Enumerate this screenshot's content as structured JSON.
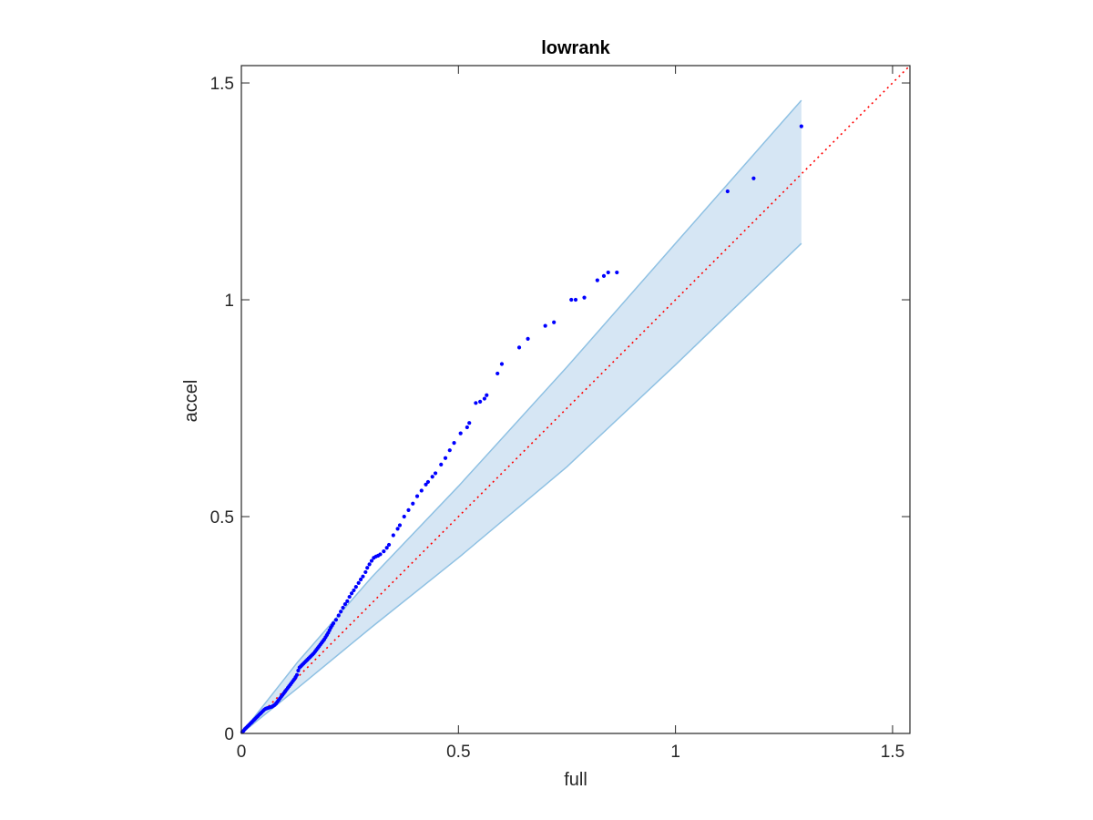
{
  "chart_data": {
    "type": "scatter",
    "title": "lowrank",
    "xlabel": "full",
    "ylabel": "accel",
    "xlim": [
      0,
      1.54
    ],
    "ylim": [
      0,
      1.54
    ],
    "xticks": [
      0,
      0.5,
      1,
      1.5
    ],
    "yticks": [
      0,
      0.5,
      1,
      1.5
    ],
    "xtick_labels": [
      "0",
      "0.5",
      "1",
      "1.5"
    ],
    "ytick_labels": [
      "0",
      "0.5",
      "1",
      "1.5"
    ],
    "grid": false,
    "colors": {
      "points": "#0000ff",
      "reference_line": "#ff0000",
      "band_fill": "#d6e6f4",
      "band_edge": "#8fc1e3",
      "axes": "#262626"
    },
    "reference_line": {
      "style": "dotted",
      "from": [
        0,
        0
      ],
      "to": [
        1.54,
        1.54
      ]
    },
    "confidence_band": {
      "x": [
        0,
        0.13,
        0.3,
        0.5,
        0.75,
        1.0,
        1.29
      ],
      "upper": [
        0,
        0.165,
        0.36,
        0.57,
        0.845,
        1.13,
        1.46
      ],
      "lower": [
        0,
        0.105,
        0.245,
        0.405,
        0.615,
        0.85,
        1.13
      ]
    },
    "series": [
      {
        "points": [
          [
            0.002,
            0.003
          ],
          [
            0.005,
            0.006
          ],
          [
            0.008,
            0.01
          ],
          [
            0.011,
            0.013
          ],
          [
            0.014,
            0.016
          ],
          [
            0.017,
            0.019
          ],
          [
            0.02,
            0.022
          ],
          [
            0.023,
            0.025
          ],
          [
            0.026,
            0.028
          ],
          [
            0.029,
            0.031
          ],
          [
            0.032,
            0.034
          ],
          [
            0.035,
            0.037
          ],
          [
            0.038,
            0.04
          ],
          [
            0.041,
            0.043
          ],
          [
            0.044,
            0.046
          ],
          [
            0.047,
            0.049
          ],
          [
            0.05,
            0.052
          ],
          [
            0.053,
            0.055
          ],
          [
            0.056,
            0.057
          ],
          [
            0.059,
            0.058
          ],
          [
            0.062,
            0.059
          ],
          [
            0.065,
            0.06
          ],
          [
            0.068,
            0.061
          ],
          [
            0.071,
            0.062
          ],
          [
            0.074,
            0.064
          ],
          [
            0.077,
            0.066
          ],
          [
            0.08,
            0.069
          ],
          [
            0.083,
            0.073
          ],
          [
            0.086,
            0.077
          ],
          [
            0.089,
            0.081
          ],
          [
            0.092,
            0.085
          ],
          [
            0.095,
            0.089
          ],
          [
            0.098,
            0.093
          ],
          [
            0.101,
            0.097
          ],
          [
            0.104,
            0.101
          ],
          [
            0.107,
            0.105
          ],
          [
            0.11,
            0.109
          ],
          [
            0.113,
            0.113
          ],
          [
            0.116,
            0.117
          ],
          [
            0.119,
            0.121
          ],
          [
            0.122,
            0.125
          ],
          [
            0.125,
            0.13
          ],
          [
            0.128,
            0.135
          ],
          [
            0.131,
            0.145
          ],
          [
            0.134,
            0.152
          ],
          [
            0.137,
            0.155
          ],
          [
            0.14,
            0.158
          ],
          [
            0.143,
            0.161
          ],
          [
            0.146,
            0.164
          ],
          [
            0.149,
            0.167
          ],
          [
            0.152,
            0.17
          ],
          [
            0.155,
            0.173
          ],
          [
            0.158,
            0.176
          ],
          [
            0.161,
            0.179
          ],
          [
            0.164,
            0.182
          ],
          [
            0.167,
            0.185
          ],
          [
            0.17,
            0.189
          ],
          [
            0.173,
            0.193
          ],
          [
            0.176,
            0.197
          ],
          [
            0.179,
            0.201
          ],
          [
            0.182,
            0.205
          ],
          [
            0.185,
            0.209
          ],
          [
            0.188,
            0.213
          ],
          [
            0.191,
            0.217
          ],
          [
            0.194,
            0.222
          ],
          [
            0.197,
            0.227
          ],
          [
            0.2,
            0.232
          ],
          [
            0.203,
            0.238
          ],
          [
            0.206,
            0.244
          ],
          [
            0.209,
            0.249
          ],
          [
            0.212,
            0.254
          ],
          [
            0.218,
            0.262
          ],
          [
            0.224,
            0.272
          ],
          [
            0.229,
            0.281
          ],
          [
            0.234,
            0.29
          ],
          [
            0.239,
            0.298
          ],
          [
            0.244,
            0.305
          ],
          [
            0.249,
            0.315
          ],
          [
            0.254,
            0.323
          ],
          [
            0.259,
            0.33
          ],
          [
            0.264,
            0.338
          ],
          [
            0.27,
            0.347
          ],
          [
            0.275,
            0.355
          ],
          [
            0.28,
            0.362
          ],
          [
            0.286,
            0.372
          ],
          [
            0.29,
            0.382
          ],
          [
            0.295,
            0.39
          ],
          [
            0.3,
            0.398
          ],
          [
            0.305,
            0.405
          ],
          [
            0.31,
            0.408
          ],
          [
            0.315,
            0.41
          ],
          [
            0.32,
            0.413
          ],
          [
            0.328,
            0.42
          ],
          [
            0.335,
            0.428
          ],
          [
            0.34,
            0.435
          ],
          [
            0.35,
            0.457
          ],
          [
            0.36,
            0.472
          ],
          [
            0.365,
            0.48
          ],
          [
            0.375,
            0.5
          ],
          [
            0.385,
            0.515
          ],
          [
            0.395,
            0.53
          ],
          [
            0.405,
            0.547
          ],
          [
            0.415,
            0.56
          ],
          [
            0.425,
            0.574
          ],
          [
            0.43,
            0.58
          ],
          [
            0.44,
            0.592
          ],
          [
            0.447,
            0.6
          ],
          [
            0.46,
            0.62
          ],
          [
            0.47,
            0.635
          ],
          [
            0.48,
            0.653
          ],
          [
            0.49,
            0.67
          ],
          [
            0.505,
            0.692
          ],
          [
            0.52,
            0.706
          ],
          [
            0.525,
            0.716
          ],
          [
            0.54,
            0.762
          ],
          [
            0.55,
            0.765
          ],
          [
            0.56,
            0.772
          ],
          [
            0.565,
            0.78
          ],
          [
            0.59,
            0.83
          ],
          [
            0.6,
            0.852
          ],
          [
            0.64,
            0.89
          ],
          [
            0.66,
            0.91
          ],
          [
            0.7,
            0.94
          ],
          [
            0.72,
            0.948
          ],
          [
            0.76,
            1.0
          ],
          [
            0.77,
            1.0
          ],
          [
            0.79,
            1.005
          ],
          [
            0.82,
            1.045
          ],
          [
            0.835,
            1.055
          ],
          [
            0.845,
            1.063
          ],
          [
            0.865,
            1.063
          ],
          [
            1.12,
            1.25
          ],
          [
            1.18,
            1.28
          ],
          [
            1.29,
            1.4
          ]
        ]
      }
    ]
  }
}
